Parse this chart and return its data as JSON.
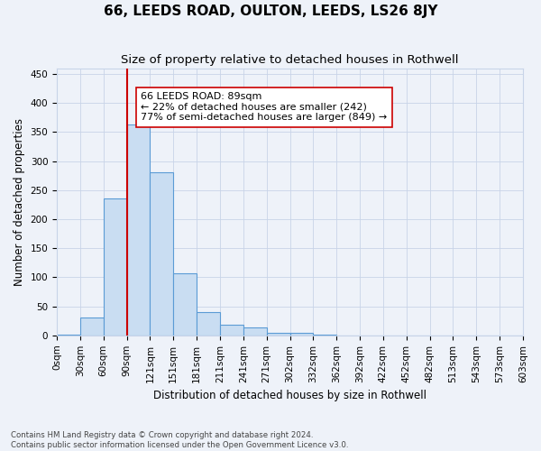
{
  "title": "66, LEEDS ROAD, OULTON, LEEDS, LS26 8JY",
  "subtitle": "Size of property relative to detached houses in Rothwell",
  "xlabel": "Distribution of detached houses by size in Rothwell",
  "ylabel": "Number of detached properties",
  "footnote1": "Contains HM Land Registry data © Crown copyright and database right 2024.",
  "footnote2": "Contains public sector information licensed under the Open Government Licence v3.0.",
  "bar_values": [
    2,
    31,
    235,
    363,
    280,
    107,
    40,
    19,
    13,
    5,
    5,
    2,
    0,
    0,
    0,
    0,
    0,
    0,
    0,
    0
  ],
  "x_tick_labels": [
    "0sqm",
    "30sqm",
    "60sqm",
    "90sqm",
    "121sqm",
    "151sqm",
    "181sqm",
    "211sqm",
    "241sqm",
    "271sqm",
    "302sqm",
    "332sqm",
    "362sqm",
    "392sqm",
    "422sqm",
    "452sqm",
    "482sqm",
    "513sqm",
    "543sqm",
    "573sqm",
    "603sqm"
  ],
  "ylim": [
    0,
    460
  ],
  "yticks": [
    0,
    50,
    100,
    150,
    200,
    250,
    300,
    350,
    400,
    450
  ],
  "bar_color": "#c9ddf2",
  "bar_edge_color": "#5b9bd5",
  "vline_bin": 3,
  "vline_color": "#cc0000",
  "annotation_line1": "66 LEEDS ROAD: 89sqm",
  "annotation_line2": "← 22% of detached houses are smaller (242)",
  "annotation_line3": "77% of semi-detached houses are larger (849) →",
  "annotation_box_color": "#ffffff",
  "annotation_box_edge_color": "#cc0000",
  "background_color": "#eef2f9",
  "grid_color": "#c8d4e8",
  "title_fontsize": 11,
  "subtitle_fontsize": 9.5,
  "label_fontsize": 8.5,
  "tick_fontsize": 7.5,
  "annotation_fontsize": 8,
  "ylabel_fontsize": 8.5
}
